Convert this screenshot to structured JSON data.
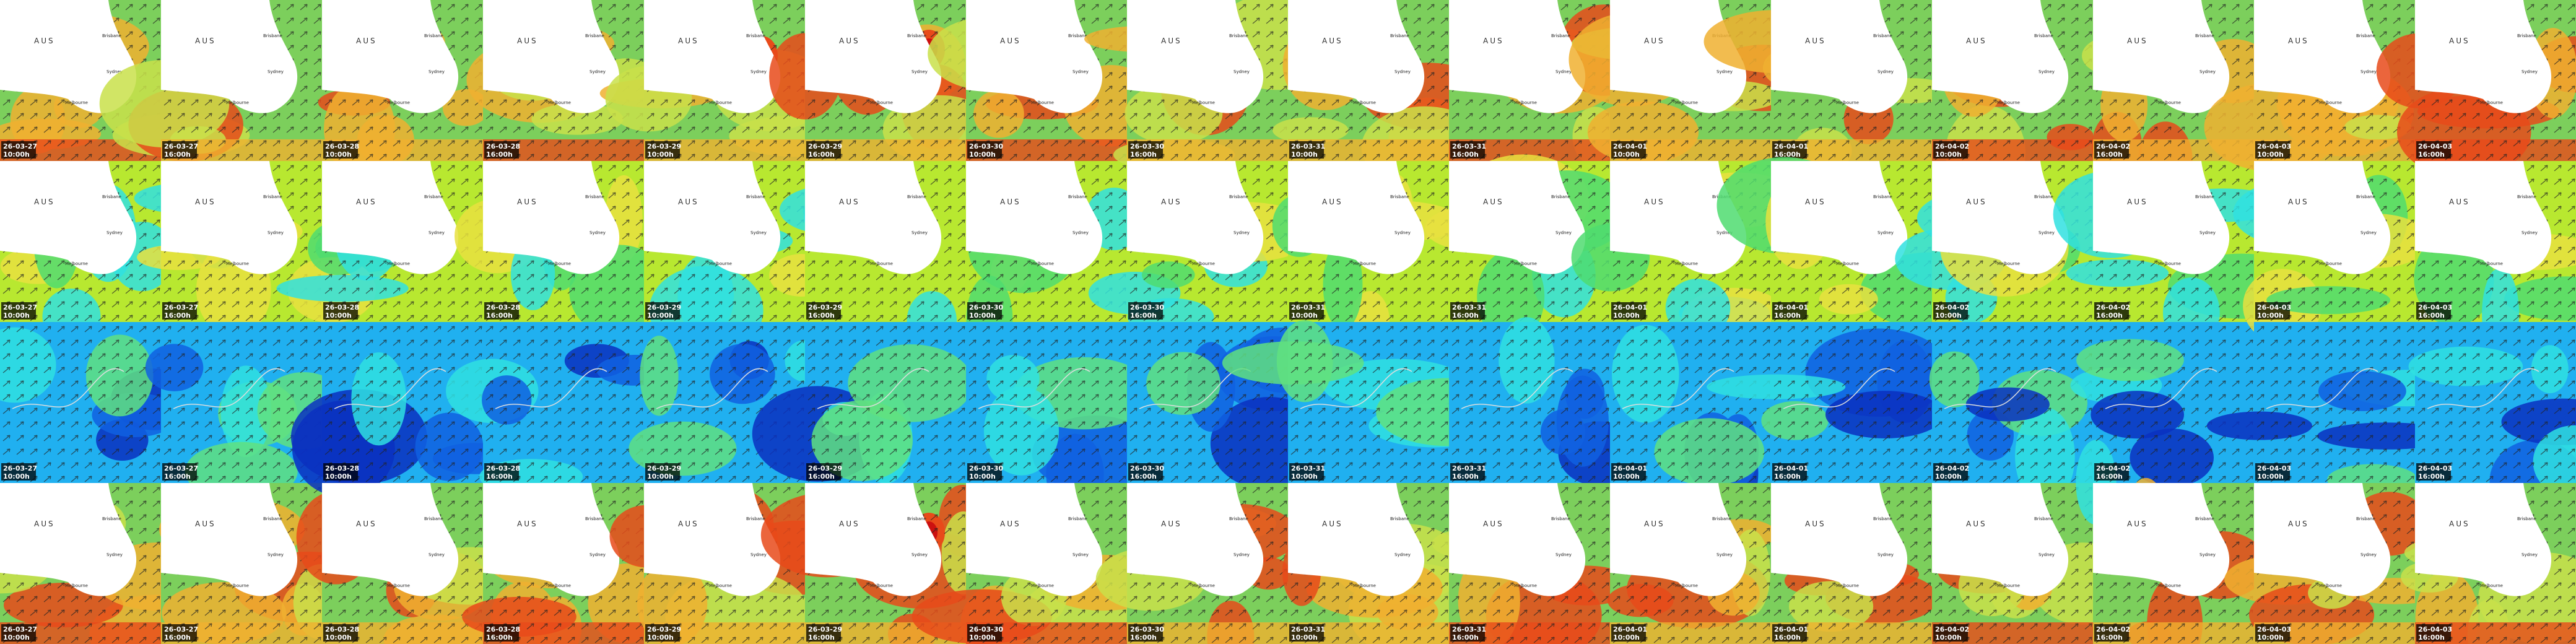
{
  "dates": [
    "26-03-27",
    "26-03-27",
    "26-03-28",
    "26-03-28",
    "26-03-29",
    "26-03-29",
    "26-03-30",
    "26-03-30",
    "26-03-31",
    "26-03-31",
    "26-04-01",
    "26-04-01",
    "26-04-02",
    "26-04-02",
    "26-04-03",
    "26-04-03"
  ],
  "times": [
    "10:00h",
    "16:00h",
    "10:00h",
    "16:00h",
    "10:00h",
    "16:00h",
    "10:00h",
    "16:00h",
    "10:00h",
    "16:00h",
    "10:00h",
    "16:00h",
    "10:00h",
    "16:00h",
    "10:00h",
    "16:00h"
  ],
  "map_label": "AUS",
  "cities": [
    "Brisbane",
    "Sydney",
    "Melbourne"
  ]
}
